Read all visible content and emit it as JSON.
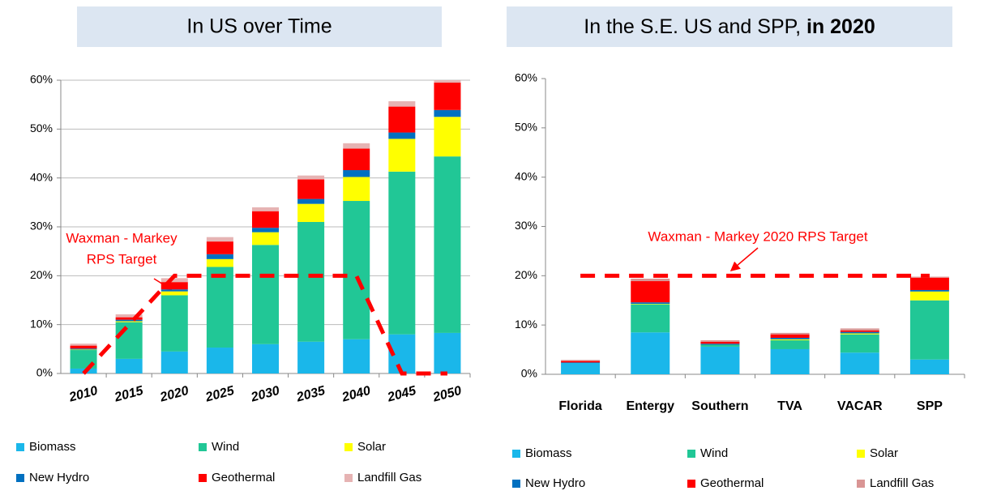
{
  "chart_data": [
    {
      "type": "bar",
      "stacked": true,
      "title": "In US over Time",
      "categories": [
        "2010",
        "2015",
        "2020",
        "2025",
        "2030",
        "2035",
        "2040",
        "2045",
        "2050"
      ],
      "series": [
        {
          "name": "Biomass",
          "color": "#1ab7ea",
          "values": [
            1,
            3,
            4.5,
            5.3,
            6,
            6.5,
            7,
            8,
            8.3
          ]
        },
        {
          "name": "Wind",
          "color": "#21c796",
          "values": [
            3.8,
            7.5,
            11.5,
            16.5,
            20.3,
            24.5,
            28.3,
            33.3,
            36.1
          ]
        },
        {
          "name": "Solar",
          "color": "#ffff00",
          "values": [
            0.1,
            0.2,
            0.8,
            1.6,
            2.6,
            3.7,
            4.9,
            6.7,
            8.1
          ]
        },
        {
          "name": "New Hydro",
          "color": "#0070c0",
          "values": [
            0.2,
            0.3,
            0.4,
            1,
            0.9,
            1,
            1.4,
            1.3,
            1.4
          ]
        },
        {
          "name": "Geothermal",
          "color": "#ff0000",
          "values": [
            0.6,
            0.5,
            1.5,
            2.6,
            3.4,
            4,
            4.4,
            5.3,
            5.6
          ]
        },
        {
          "name": "Landfill Gas",
          "color": "#e6b3b3",
          "values": [
            0.4,
            0.6,
            0.8,
            0.9,
            0.8,
            0.8,
            1.1,
            1.1,
            0.5
          ]
        }
      ],
      "target": {
        "label": [
          "Waxman - Markey",
          "RPS Target"
        ],
        "color": "#ff0000",
        "values": [
          0,
          10,
          20,
          20,
          20,
          20,
          20,
          0,
          0
        ]
      },
      "ylim": [
        0,
        60
      ],
      "yticks": [
        {
          "value": 0,
          "label": "0%"
        },
        {
          "value": 10,
          "label": "10%"
        },
        {
          "value": 20,
          "label": "20%"
        },
        {
          "value": 30,
          "label": "30%"
        },
        {
          "value": 40,
          "label": "40%"
        },
        {
          "value": 50,
          "label": "50%"
        },
        {
          "value": 60,
          "label": "60%"
        }
      ],
      "grid": true
    },
    {
      "type": "bar",
      "stacked": true,
      "title": "In the S.E. US and SPP,",
      "title_bold": "in 2020",
      "categories": [
        "Florida",
        "Entergy",
        "Southern",
        "TVA",
        "VACAR",
        "SPP"
      ],
      "series": [
        {
          "name": "Biomass",
          "color": "#1ab7ea",
          "values": [
            2.3,
            8.5,
            5.6,
            5.1,
            4.4,
            3
          ]
        },
        {
          "name": "Wind",
          "color": "#21c796",
          "values": [
            0,
            5.7,
            0.4,
            1.8,
            3.7,
            12
          ]
        },
        {
          "name": "Solar",
          "color": "#ffff00",
          "values": [
            0,
            0.1,
            0,
            0.2,
            0.2,
            1.8
          ]
        },
        {
          "name": "New Hydro",
          "color": "#0070c0",
          "values": [
            0.1,
            0.3,
            0.2,
            0.3,
            0.3,
            0.3
          ]
        },
        {
          "name": "Geothermal",
          "color": "#ff0000",
          "values": [
            0.3,
            4.3,
            0.4,
            0.7,
            0.3,
            2.5
          ]
        },
        {
          "name": "Landfill Gas",
          "color": "#d99594",
          "values": [
            0.2,
            0.5,
            0.3,
            0.3,
            0.4,
            0.2
          ]
        }
      ],
      "target": {
        "label": [
          "Waxman - Markey 2020 RPS Target"
        ],
        "color": "#ff0000",
        "values": [
          20,
          20,
          20,
          20,
          20,
          20
        ]
      },
      "ylim": [
        0,
        60
      ],
      "yticks": [
        {
          "value": 0,
          "label": "0%"
        },
        {
          "value": 10,
          "label": "10%"
        },
        {
          "value": 20,
          "label": "20%"
        },
        {
          "value": 30,
          "label": "30%"
        },
        {
          "value": 40,
          "label": "40%"
        },
        {
          "value": 50,
          "label": "50%"
        },
        {
          "value": 60,
          "label": "60%"
        }
      ],
      "grid": false
    }
  ]
}
